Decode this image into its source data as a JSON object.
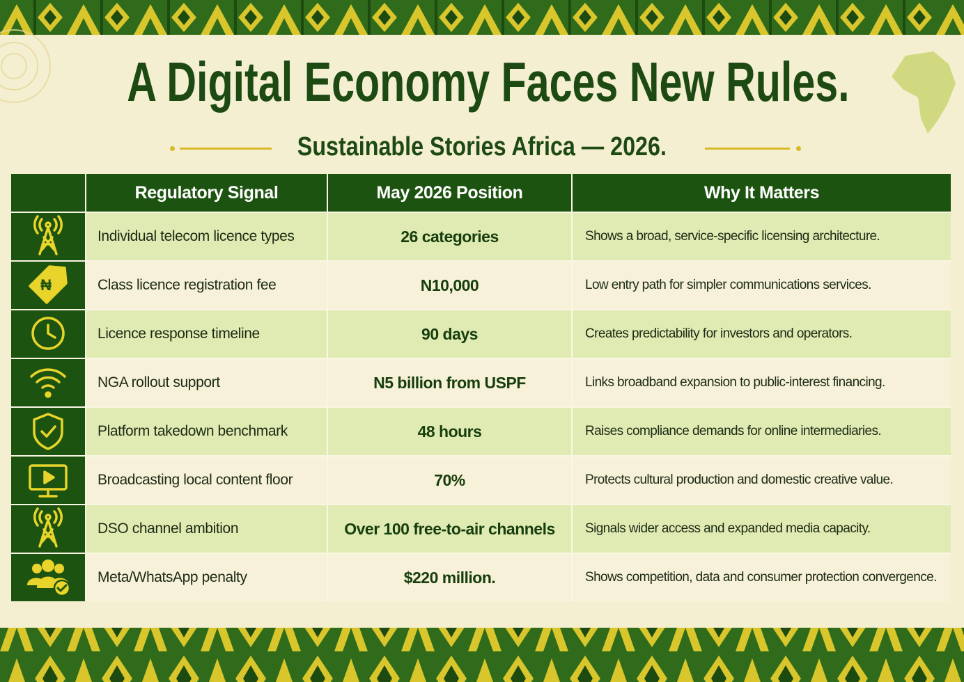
{
  "header": {
    "title": "A Digital Economy Faces New Rules.",
    "subtitle": "Sustainable Stories Africa — 2026."
  },
  "table": {
    "columns": [
      "Regulatory Signal",
      "May 2026 Position",
      "Why It Matters"
    ],
    "rows": [
      [
        "Individual telecom licence types",
        "26 categories",
        "Shows a broad, service-specific licensing architecture."
      ],
      [
        "Class licence registration fee",
        "N10,000",
        "Low entry path for simpler communications services."
      ],
      [
        "Licence response timeline",
        "90 days",
        "Creates predictability for investors and operators."
      ],
      [
        "NGA rollout support",
        "N5 billion from USPF",
        "Links broadband expansion to public-interest financing."
      ],
      [
        "Platform takedown benchmark",
        "48 hours",
        "Raises compliance demands for online intermediaries."
      ],
      [
        "Broadcasting local content floor",
        "70%",
        "Protects cultural production and domestic creative value."
      ],
      [
        "DSO channel ambition",
        "Over 100 free-to-air channels",
        "Signals wider access and expanded media capacity."
      ],
      [
        "Meta/WhatsApp penalty",
        "$220 million.",
        "Shows competition, data and consumer protection convergence."
      ]
    ]
  }
}
